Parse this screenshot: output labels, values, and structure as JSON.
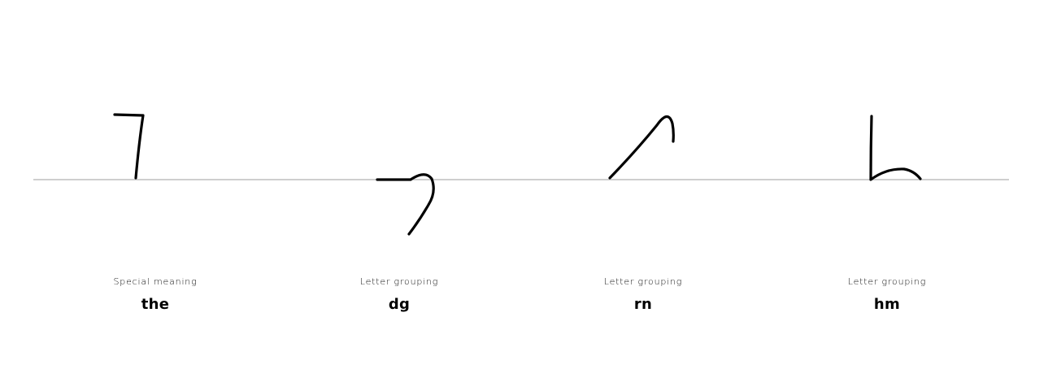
{
  "cards": [
    {
      "category": "Special meaning",
      "meaning": "the",
      "glyph": "the-glyph"
    },
    {
      "category": "Letter grouping",
      "meaning": "dg",
      "glyph": "dg-glyph"
    },
    {
      "category": "Letter grouping",
      "meaning": "rn",
      "glyph": "rn-glyph"
    },
    {
      "category": "Letter grouping",
      "meaning": "hm",
      "glyph": "hm-glyph"
    }
  ],
  "colors": {
    "background": "#ffffff",
    "stroke": "#000000",
    "baseline": "#cfcfcf"
  }
}
